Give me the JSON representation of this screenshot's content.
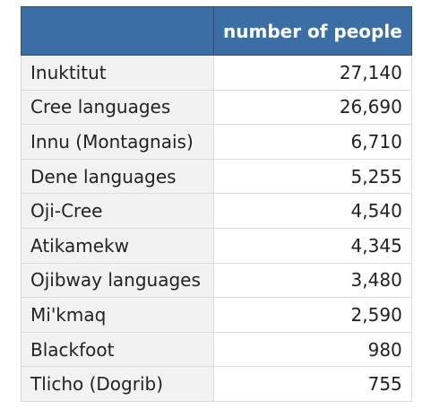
{
  "table": {
    "headers": [
      "",
      "number of people"
    ],
    "rows": [
      {
        "language": "Inuktitut",
        "people": "27,140"
      },
      {
        "language": "Cree languages",
        "people": "26,690"
      },
      {
        "language": "Innu (Montagnais)",
        "people": "6,710"
      },
      {
        "language": "Dene languages",
        "people": "5,255"
      },
      {
        "language": "Oji-Cree",
        "people": "4,540"
      },
      {
        "language": "Atikamekw",
        "people": "4,345"
      },
      {
        "language": "Ojibway languages",
        "people": "3,480"
      },
      {
        "language": "Mi'kmaq",
        "people": "2,590"
      },
      {
        "language": "Blackfoot",
        "people": "980"
      },
      {
        "language": "Tlicho (Dogrib)",
        "people": "755"
      }
    ]
  },
  "colors": {
    "header_bg": "#3a6ea5",
    "header_text": "#ffffff",
    "label_bg": "#f2f2f2",
    "border": "#dcdcdc"
  }
}
